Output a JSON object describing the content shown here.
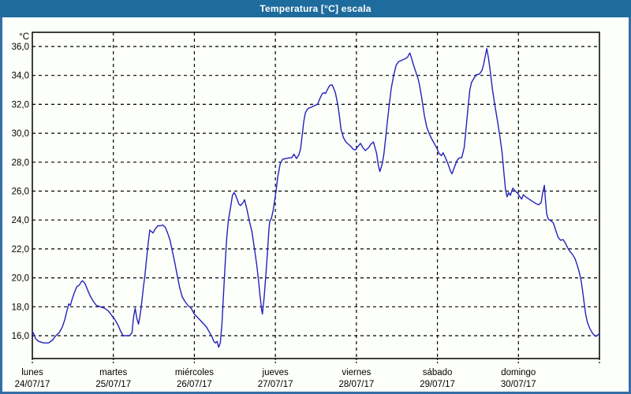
{
  "window": {
    "title": "Temperatura [°C] escala",
    "colors": {
      "title_bar": "#1e6b9d",
      "title_text": "#ffffff",
      "border": "#336fa6",
      "background": "#fdfffb",
      "axis": "#000000",
      "grid": "#000000",
      "line": "#2222bb"
    }
  },
  "chart_data": {
    "type": "line",
    "title": "Temperatura [°C] escala",
    "y_unit_label": "°C",
    "ylabel": "°C",
    "xlabel": "",
    "grid": "dashed",
    "legend_position": "none",
    "ylim": [
      14.42,
      36.98
    ],
    "xlim_days": [
      0,
      7
    ],
    "y_ticks": [
      16,
      18,
      20,
      22,
      24,
      26,
      28,
      30,
      32,
      34,
      36
    ],
    "y_tick_labels": [
      "16,0",
      "18,0",
      "20,0",
      "22,0",
      "24,0",
      "26,0",
      "28,0",
      "30,0",
      "32,0",
      "34,0",
      "36,0"
    ],
    "x_categories": [
      {
        "day": "lunes",
        "date": "24/07/17"
      },
      {
        "day": "martes",
        "date": "25/07/17"
      },
      {
        "day": "miércoles",
        "date": "26/07/17"
      },
      {
        "day": "jueves",
        "date": "27/07/17"
      },
      {
        "day": "viernes",
        "date": "28/07/17"
      },
      {
        "day": "sábado",
        "date": "29/07/17"
      },
      {
        "day": "domingo",
        "date": "30/07/17"
      }
    ],
    "series": [
      {
        "name": "Temperatura",
        "color": "#2222bb",
        "points": [
          [
            0.0,
            16.3
          ],
          [
            0.02,
            16.1
          ],
          [
            0.04,
            15.8
          ],
          [
            0.08,
            15.6
          ],
          [
            0.14,
            15.5
          ],
          [
            0.2,
            15.5
          ],
          [
            0.25,
            15.7
          ],
          [
            0.29,
            16.0
          ],
          [
            0.33,
            16.2
          ],
          [
            0.37,
            16.6
          ],
          [
            0.4,
            17.1
          ],
          [
            0.43,
            17.8
          ],
          [
            0.45,
            18.2
          ],
          [
            0.47,
            18.1
          ],
          [
            0.49,
            18.5
          ],
          [
            0.52,
            19.0
          ],
          [
            0.55,
            19.4
          ],
          [
            0.58,
            19.5
          ],
          [
            0.6,
            19.7
          ],
          [
            0.62,
            19.8
          ],
          [
            0.65,
            19.6
          ],
          [
            0.68,
            19.2
          ],
          [
            0.71,
            18.8
          ],
          [
            0.75,
            18.4
          ],
          [
            0.79,
            18.1
          ],
          [
            0.84,
            18.0
          ],
          [
            0.89,
            17.9
          ],
          [
            0.94,
            17.7
          ],
          [
            0.98,
            17.4
          ],
          [
            1.02,
            17.1
          ],
          [
            1.06,
            16.7
          ],
          [
            1.09,
            16.3
          ],
          [
            1.12,
            16.0
          ],
          [
            1.16,
            16.0
          ],
          [
            1.2,
            16.0
          ],
          [
            1.23,
            16.2
          ],
          [
            1.25,
            17.3
          ],
          [
            1.27,
            17.9
          ],
          [
            1.29,
            17.2
          ],
          [
            1.31,
            16.8
          ],
          [
            1.33,
            17.4
          ],
          [
            1.35,
            18.3
          ],
          [
            1.37,
            19.3
          ],
          [
            1.39,
            20.2
          ],
          [
            1.41,
            21.3
          ],
          [
            1.43,
            22.4
          ],
          [
            1.45,
            23.3
          ],
          [
            1.47,
            23.2
          ],
          [
            1.49,
            23.1
          ],
          [
            1.52,
            23.4
          ],
          [
            1.55,
            23.6
          ],
          [
            1.58,
            23.6
          ],
          [
            1.61,
            23.65
          ],
          [
            1.64,
            23.5
          ],
          [
            1.67,
            23.1
          ],
          [
            1.7,
            22.6
          ],
          [
            1.73,
            21.8
          ],
          [
            1.76,
            21.0
          ],
          [
            1.79,
            20.1
          ],
          [
            1.82,
            19.3
          ],
          [
            1.85,
            18.7
          ],
          [
            1.88,
            18.4
          ],
          [
            1.92,
            18.1
          ],
          [
            1.96,
            17.9
          ],
          [
            2.0,
            17.5
          ],
          [
            2.05,
            17.2
          ],
          [
            2.1,
            16.9
          ],
          [
            2.15,
            16.6
          ],
          [
            2.19,
            16.2
          ],
          [
            2.22,
            15.9
          ],
          [
            2.24,
            15.6
          ],
          [
            2.26,
            15.5
          ],
          [
            2.28,
            15.6
          ],
          [
            2.3,
            15.2
          ],
          [
            2.32,
            15.5
          ],
          [
            2.34,
            16.8
          ],
          [
            2.36,
            18.9
          ],
          [
            2.38,
            21.0
          ],
          [
            2.4,
            22.8
          ],
          [
            2.42,
            24.0
          ],
          [
            2.45,
            25.0
          ],
          [
            2.47,
            25.7
          ],
          [
            2.49,
            25.9
          ],
          [
            2.51,
            25.7
          ],
          [
            2.53,
            25.4
          ],
          [
            2.55,
            25.1
          ],
          [
            2.57,
            25.0
          ],
          [
            2.6,
            25.2
          ],
          [
            2.62,
            25.4
          ],
          [
            2.65,
            24.7
          ],
          [
            2.68,
            23.9
          ],
          [
            2.71,
            23.2
          ],
          [
            2.74,
            22.1
          ],
          [
            2.77,
            20.9
          ],
          [
            2.79,
            19.9
          ],
          [
            2.81,
            18.8
          ],
          [
            2.83,
            17.8
          ],
          [
            2.84,
            17.5
          ],
          [
            2.86,
            18.6
          ],
          [
            2.88,
            20.0
          ],
          [
            2.9,
            21.6
          ],
          [
            2.92,
            23.3
          ],
          [
            2.93,
            23.9
          ],
          [
            2.95,
            24.1
          ],
          [
            2.97,
            24.6
          ],
          [
            2.99,
            25.3
          ],
          [
            3.01,
            26.1
          ],
          [
            3.03,
            27.0
          ],
          [
            3.06,
            27.9
          ],
          [
            3.09,
            28.2
          ],
          [
            3.13,
            28.25
          ],
          [
            3.17,
            28.3
          ],
          [
            3.2,
            28.3
          ],
          [
            3.23,
            28.55
          ],
          [
            3.26,
            28.25
          ],
          [
            3.29,
            28.5
          ],
          [
            3.31,
            28.9
          ],
          [
            3.33,
            29.8
          ],
          [
            3.35,
            30.8
          ],
          [
            3.37,
            31.4
          ],
          [
            3.4,
            31.7
          ],
          [
            3.44,
            31.8
          ],
          [
            3.48,
            31.9
          ],
          [
            3.52,
            32.0
          ],
          [
            3.55,
            32.4
          ],
          [
            3.58,
            32.75
          ],
          [
            3.6,
            32.8
          ],
          [
            3.62,
            32.75
          ],
          [
            3.64,
            33.0
          ],
          [
            3.67,
            33.3
          ],
          [
            3.7,
            33.35
          ],
          [
            3.72,
            33.1
          ],
          [
            3.74,
            32.8
          ],
          [
            3.77,
            32.0
          ],
          [
            3.79,
            31.2
          ],
          [
            3.81,
            30.3
          ],
          [
            3.84,
            29.7
          ],
          [
            3.87,
            29.4
          ],
          [
            3.9,
            29.25
          ],
          [
            3.93,
            29.1
          ],
          [
            3.96,
            28.9
          ],
          [
            3.99,
            28.85
          ],
          [
            4.02,
            29.1
          ],
          [
            4.05,
            29.3
          ],
          [
            4.08,
            29.0
          ],
          [
            4.11,
            28.8
          ],
          [
            4.15,
            29.0
          ],
          [
            4.18,
            29.25
          ],
          [
            4.21,
            29.4
          ],
          [
            4.23,
            29.0
          ],
          [
            4.25,
            28.6
          ],
          [
            4.27,
            27.8
          ],
          [
            4.29,
            27.35
          ],
          [
            4.32,
            27.9
          ],
          [
            4.34,
            28.6
          ],
          [
            4.36,
            29.6
          ],
          [
            4.38,
            30.7
          ],
          [
            4.41,
            32.2
          ],
          [
            4.43,
            33.1
          ],
          [
            4.46,
            34.0
          ],
          [
            4.49,
            34.7
          ],
          [
            4.52,
            34.95
          ],
          [
            4.56,
            35.05
          ],
          [
            4.6,
            35.15
          ],
          [
            4.63,
            35.25
          ],
          [
            4.66,
            35.55
          ],
          [
            4.68,
            35.2
          ],
          [
            4.7,
            34.8
          ],
          [
            4.73,
            34.3
          ],
          [
            4.76,
            33.8
          ],
          [
            4.78,
            33.3
          ],
          [
            4.81,
            32.3
          ],
          [
            4.84,
            31.2
          ],
          [
            4.87,
            30.4
          ],
          [
            4.9,
            29.95
          ],
          [
            4.93,
            29.6
          ],
          [
            4.96,
            29.3
          ],
          [
            4.99,
            29.0
          ],
          [
            5.02,
            28.6
          ],
          [
            5.05,
            28.45
          ],
          [
            5.07,
            28.65
          ],
          [
            5.1,
            28.3
          ],
          [
            5.13,
            27.9
          ],
          [
            5.16,
            27.4
          ],
          [
            5.18,
            27.2
          ],
          [
            5.21,
            27.65
          ],
          [
            5.24,
            28.1
          ],
          [
            5.27,
            28.3
          ],
          [
            5.3,
            28.3
          ],
          [
            5.33,
            29.0
          ],
          [
            5.35,
            30.1
          ],
          [
            5.38,
            31.9
          ],
          [
            5.4,
            33.0
          ],
          [
            5.42,
            33.5
          ],
          [
            5.45,
            33.8
          ],
          [
            5.48,
            34.05
          ],
          [
            5.52,
            34.1
          ],
          [
            5.55,
            34.35
          ],
          [
            5.57,
            34.75
          ],
          [
            5.6,
            35.6
          ],
          [
            5.61,
            35.85
          ],
          [
            5.63,
            35.2
          ],
          [
            5.65,
            34.4
          ],
          [
            5.68,
            33.0
          ],
          [
            5.71,
            31.9
          ],
          [
            5.74,
            30.9
          ],
          [
            5.77,
            29.8
          ],
          [
            5.8,
            28.6
          ],
          [
            5.82,
            27.3
          ],
          [
            5.84,
            26.1
          ],
          [
            5.86,
            25.6
          ],
          [
            5.88,
            25.9
          ],
          [
            5.9,
            25.7
          ],
          [
            5.93,
            26.2
          ],
          [
            5.96,
            26.0
          ],
          [
            5.99,
            25.85
          ],
          [
            6.02,
            25.6
          ],
          [
            6.04,
            25.45
          ],
          [
            6.06,
            25.75
          ],
          [
            6.09,
            25.6
          ],
          [
            6.13,
            25.45
          ],
          [
            6.17,
            25.3
          ],
          [
            6.21,
            25.15
          ],
          [
            6.25,
            25.05
          ],
          [
            6.28,
            25.2
          ],
          [
            6.3,
            25.9
          ],
          [
            6.32,
            26.4
          ],
          [
            6.33,
            25.6
          ],
          [
            6.35,
            24.4
          ],
          [
            6.37,
            24.05
          ],
          [
            6.4,
            23.95
          ],
          [
            6.43,
            23.8
          ],
          [
            6.46,
            23.3
          ],
          [
            6.49,
            22.8
          ],
          [
            6.52,
            22.6
          ],
          [
            6.55,
            22.65
          ],
          [
            6.58,
            22.4
          ],
          [
            6.61,
            22.05
          ],
          [
            6.64,
            21.8
          ],
          [
            6.67,
            21.6
          ],
          [
            6.7,
            21.3
          ],
          [
            6.73,
            20.8
          ],
          [
            6.75,
            20.4
          ],
          [
            6.77,
            19.9
          ],
          [
            6.79,
            19.2
          ],
          [
            6.81,
            18.3
          ],
          [
            6.83,
            17.5
          ],
          [
            6.85,
            16.95
          ],
          [
            6.88,
            16.5
          ],
          [
            6.91,
            16.2
          ],
          [
            6.94,
            16.0
          ],
          [
            6.96,
            15.95
          ],
          [
            6.98,
            16.05
          ],
          [
            7.0,
            16.15
          ]
        ]
      }
    ]
  }
}
